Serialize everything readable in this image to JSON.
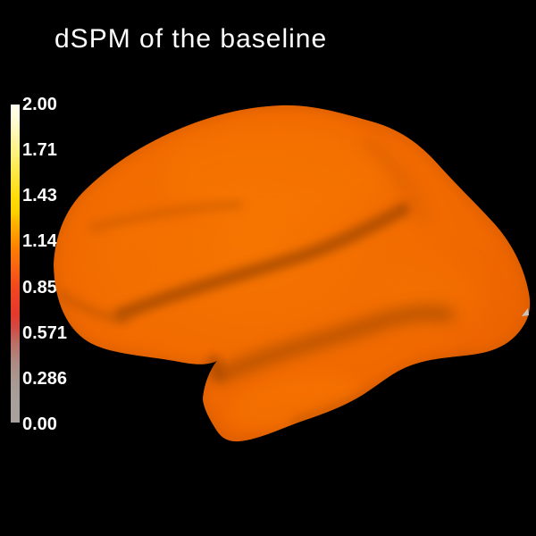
{
  "window": {
    "background": "#000000"
  },
  "title": {
    "text": "dSPM of the baseline",
    "color": "#ffffff"
  },
  "colorbar": {
    "orientation": "vertical",
    "position": "left",
    "label_color": "#ffffff",
    "tick_labels": [
      "2.00",
      "1.71",
      "1.43",
      "1.14",
      "0.857",
      "0.571",
      "0.286",
      "0.00"
    ],
    "gradient_stops": [
      {
        "pct": 0,
        "color": "#a9a19c"
      },
      {
        "pct": 8,
        "color": "#a89f9a"
      },
      {
        "pct": 14,
        "color": "#a9978f"
      },
      {
        "pct": 19,
        "color": "#ad8a82"
      },
      {
        "pct": 25,
        "color": "#bc6e65"
      },
      {
        "pct": 30,
        "color": "#d14a42"
      },
      {
        "pct": 34,
        "color": "#e4392d"
      },
      {
        "pct": 42,
        "color": "#f0461f"
      },
      {
        "pct": 46,
        "color": "#f55618"
      },
      {
        "pct": 50,
        "color": "#f96a10"
      },
      {
        "pct": 54,
        "color": "#fc7a04"
      },
      {
        "pct": 57,
        "color": "#ff8e00"
      },
      {
        "pct": 63,
        "color": "#ffb400"
      },
      {
        "pct": 66,
        "color": "#ffd000"
      },
      {
        "pct": 71,
        "color": "#ffdc0a"
      },
      {
        "pct": 75,
        "color": "#ffe22a"
      },
      {
        "pct": 80,
        "color": "#ffe950"
      },
      {
        "pct": 84,
        "color": "#fff078"
      },
      {
        "pct": 88,
        "color": "#fff49a"
      },
      {
        "pct": 92,
        "color": "#fff8be"
      },
      {
        "pct": 96,
        "color": "#fffbdc"
      },
      {
        "pct": 100,
        "color": "#fffef0"
      }
    ]
  },
  "brain": {
    "view": "lateral",
    "colors": {
      "surf-base": "#f06900",
      "surf-hi": "#f67501",
      "surf-edge": "#e55c00",
      "rim": "#c85600",
      "sulcus": "#9c4400",
      "sulcus-soft": "#b85200",
      "highlight": "#f87704",
      "speck": "#c8c4c0"
    }
  },
  "chart_data": {
    "type": "heatmap",
    "title": "dSPM of the baseline",
    "colorbar_ticks": [
      "2.00",
      "1.71",
      "1.43",
      "1.14",
      "0.857",
      "0.571",
      "0.286",
      "0.00"
    ],
    "value_range": [
      0.0,
      2.0
    ],
    "colorbar_position": "left",
    "colormap_value_stops": [
      {
        "value": 0.0,
        "color": "#a9a19c"
      },
      {
        "value": 0.286,
        "color": "#a9978f"
      },
      {
        "value": 0.571,
        "color": "#cb5249"
      },
      {
        "value": 0.857,
        "color": "#f0481e"
      },
      {
        "value": 1.0,
        "color": "#f96a10"
      },
      {
        "value": 1.14,
        "color": "#ff8e00"
      },
      {
        "value": 1.43,
        "color": "#ffe32a"
      },
      {
        "value": 1.71,
        "color": "#fff38c"
      },
      {
        "value": 2.0,
        "color": "#fffef0"
      }
    ],
    "surface": {
      "description": "lateral view of a cortical hemisphere rendered as a 3D surface, nearly uniform orange with darker sulcal shading (Sylvian fissure) and a gap between frontal and temporal lobes",
      "dominant_color": "#f06900",
      "dominant_value_estimate": 1.0
    },
    "legend_position": "left",
    "grid": false
  }
}
